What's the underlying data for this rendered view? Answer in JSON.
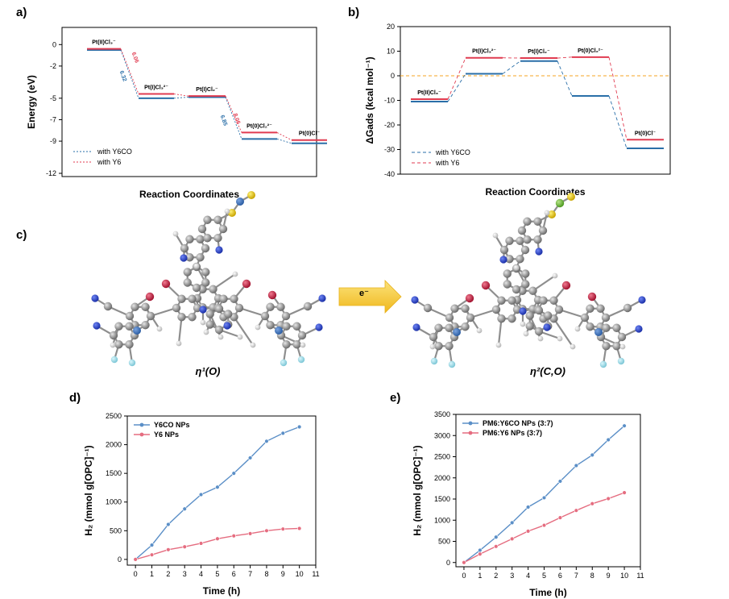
{
  "panel_labels": {
    "a": "a)",
    "b": "b)",
    "c": "c)",
    "d": "d)",
    "e": "e)"
  },
  "panel_c": {
    "arrow_label": "e⁻",
    "left_caption": "η¹(O)",
    "right_caption": "η²(C,O)"
  },
  "colors": {
    "blue": "#2a6fa8",
    "red": "#e03b50",
    "blue_line": "#5b8fc7",
    "red_line": "#e56d80",
    "zero_line": "#f5a623"
  },
  "chart_data": [
    {
      "id": "a",
      "type": "line",
      "ylabel": "Energy (eV)",
      "xlabel": "Reaction Coordinates",
      "ylim": [
        -12,
        1.5
      ],
      "yticks": [
        0,
        -2,
        -5,
        -7,
        -9,
        -12
      ],
      "states": [
        "Pt(II)Cl₃⁻",
        "Pt(I)Cl₃²⁻",
        "Pt(I)Cl₂⁻",
        "Pt(0)Cl₂²⁻",
        "Pt(0)Cl⁻"
      ],
      "series": [
        {
          "name": "with Y6CO",
          "values": [
            -0.5,
            -5.0,
            -4.9,
            -8.8,
            -9.2
          ]
        },
        {
          "name": "with Y6",
          "values": [
            -0.4,
            -4.6,
            -4.8,
            -8.2,
            -8.9
          ]
        }
      ],
      "step_labels": [
        {
          "text": "6.06",
          "series": "with Y6"
        },
        {
          "text": "6.32",
          "series": "with Y6CO"
        },
        {
          "text": "8.06",
          "series": "with Y6"
        },
        {
          "text": "6.85",
          "series": "with Y6CO"
        }
      ],
      "legend": "bottom-left"
    },
    {
      "id": "b",
      "type": "line",
      "ylabel": "ΔGads (kcal mol⁻¹)",
      "xlabel": "Reaction Coordinates",
      "ylim": [
        -40,
        20
      ],
      "yticks": [
        20,
        10,
        0,
        -10,
        -20,
        -30,
        -40
      ],
      "states": [
        "Pt(II)Cl₃⁻",
        "Pt(I)Cl₃²⁻",
        "Pt(I)Cl₂⁻",
        "Pt(0)Cl₂²⁻",
        "Pt(0)Cl⁻"
      ],
      "series": [
        {
          "name": "with Y6CO",
          "values": [
            -10.5,
            0.8,
            6.0,
            -8.2,
            -29.5
          ]
        },
        {
          "name": "with Y6",
          "values": [
            -9.5,
            7.3,
            7.2,
            7.6,
            -26.0
          ]
        }
      ],
      "legend": "bottom-left"
    },
    {
      "id": "d",
      "type": "line",
      "ylabel": "H₂ (mmol g[OPC]⁻¹)",
      "xlabel": "Time (h)",
      "xlim": [
        -0.5,
        11
      ],
      "ylim": [
        -100,
        2500
      ],
      "xticks": [
        0,
        1,
        2,
        3,
        4,
        5,
        6,
        7,
        8,
        9,
        10,
        11
      ],
      "yticks": [
        0,
        500,
        1000,
        1500,
        2000,
        2500
      ],
      "x": [
        0,
        1,
        2,
        3,
        4,
        5,
        6,
        7,
        8,
        9,
        10
      ],
      "series": [
        {
          "name": "Y6CO NPs",
          "values": [
            0,
            250,
            610,
            880,
            1130,
            1260,
            1500,
            1770,
            2060,
            2200,
            2310
          ]
        },
        {
          "name": "Y6 NPs",
          "values": [
            0,
            80,
            170,
            220,
            280,
            360,
            410,
            450,
            500,
            530,
            540
          ]
        }
      ],
      "legend": "top-left"
    },
    {
      "id": "e",
      "type": "line",
      "ylabel": "H₂ (mmol g[OPC]⁻¹)",
      "xlabel": "Time (h)",
      "xlim": [
        -0.5,
        11
      ],
      "ylim": [
        -100,
        3500
      ],
      "xticks": [
        0,
        1,
        2,
        3,
        4,
        5,
        6,
        7,
        8,
        9,
        10,
        11
      ],
      "yticks": [
        0,
        500,
        1000,
        1500,
        2000,
        2500,
        3000,
        3500
      ],
      "x": [
        0,
        1,
        2,
        3,
        4,
        5,
        6,
        7,
        8,
        9,
        10
      ],
      "series": [
        {
          "name": "PM6:Y6CO NPs (3:7)",
          "values": [
            0,
            290,
            600,
            940,
            1310,
            1530,
            1920,
            2290,
            2540,
            2900,
            3230
          ]
        },
        {
          "name": "PM6:Y6 NPs (3:7)",
          "values": [
            0,
            200,
            380,
            560,
            740,
            880,
            1060,
            1230,
            1390,
            1510,
            1650
          ]
        }
      ],
      "legend": "top-left"
    }
  ]
}
